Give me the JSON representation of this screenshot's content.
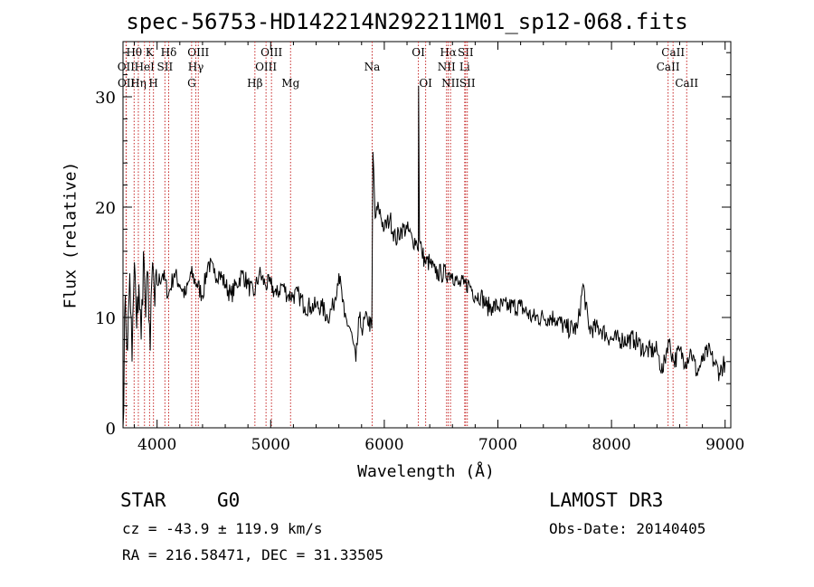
{
  "chart_data": {
    "type": "line",
    "title": "spec-56753-HD142214N292211M01_sp12-068.fits",
    "xlabel": "Wavelength (Å)",
    "ylabel": "Flux (relative)",
    "xlim": [
      3700,
      9050
    ],
    "ylim": [
      0,
      35
    ],
    "xticks": [
      4000,
      5000,
      6000,
      7000,
      8000,
      9000
    ],
    "yticks": [
      0,
      10,
      20,
      30
    ],
    "grid": false,
    "legend": "none",
    "series": [
      {
        "name": "flux",
        "x": [
          3700,
          3720,
          3740,
          3760,
          3780,
          3800,
          3820,
          3840,
          3860,
          3880,
          3900,
          3920,
          3940,
          3960,
          3980,
          4000,
          4050,
          4100,
          4150,
          4200,
          4250,
          4300,
          4350,
          4400,
          4450,
          4500,
          4550,
          4600,
          4650,
          4700,
          4750,
          4800,
          4850,
          4900,
          4950,
          5000,
          5050,
          5100,
          5150,
          5200,
          5250,
          5300,
          5350,
          5400,
          5450,
          5500,
          5550,
          5600,
          5650,
          5700,
          5750,
          5780,
          5800,
          5850,
          5890,
          5900,
          5920,
          5950,
          6000,
          6050,
          6100,
          6150,
          6200,
          6250,
          6280,
          6300,
          6302,
          6310,
          6330,
          6360,
          6400,
          6450,
          6500,
          6560,
          6600,
          6650,
          6700,
          6750,
          6800,
          6850,
          6900,
          6950,
          7000,
          7100,
          7200,
          7300,
          7400,
          7500,
          7600,
          7700,
          7750,
          7800,
          7900,
          8000,
          8100,
          8200,
          8300,
          8400,
          8450,
          8500,
          8550,
          8600,
          8650,
          8700,
          8750,
          8800,
          8850,
          8900,
          8950,
          9000
        ],
        "y": [
          0,
          12,
          7,
          14,
          6,
          15,
          9,
          13,
          8,
          16,
          10,
          14,
          7,
          15,
          11,
          13,
          14,
          12,
          14,
          13,
          12,
          14,
          13,
          12,
          15,
          14,
          14,
          13,
          12,
          13,
          14,
          13,
          12,
          14,
          13,
          13,
          12,
          13,
          12,
          12,
          12,
          11,
          11,
          11,
          11,
          10,
          11,
          14,
          10,
          9,
          6,
          10,
          9,
          10,
          9,
          25,
          19,
          20,
          18,
          19,
          17,
          18,
          18,
          17,
          17,
          16,
          31,
          17,
          16,
          15,
          15,
          14,
          14,
          14,
          14,
          13,
          13,
          13,
          12,
          12,
          11,
          11,
          11,
          11,
          11,
          10,
          10,
          10,
          9,
          9,
          13,
          9,
          9,
          8,
          8,
          8,
          7,
          7,
          5,
          8,
          6,
          7,
          6,
          7,
          5,
          6,
          7,
          6,
          5,
          6
        ]
      }
    ],
    "line_markers": [
      {
        "label": "Hθ",
        "x": 3798,
        "row": 1
      },
      {
        "label": "OII",
        "x": 3727,
        "row": 2
      },
      {
        "label": "OII",
        "x": 3729,
        "row": 3
      },
      {
        "label": "Hη",
        "x": 3835,
        "row": 3
      },
      {
        "label": "K",
        "x": 3934,
        "row": 1
      },
      {
        "label": "HeI",
        "x": 3889,
        "row": 2
      },
      {
        "label": "SII",
        "x": 4069,
        "row": 2
      },
      {
        "label": "H",
        "x": 3968,
        "row": 3
      },
      {
        "label": "Hδ",
        "x": 4102,
        "row": 1
      },
      {
        "label": "OIII",
        "x": 4363,
        "row": 1
      },
      {
        "label": "Hγ",
        "x": 4341,
        "row": 2
      },
      {
        "label": "G",
        "x": 4304,
        "row": 3
      },
      {
        "label": "Hβ",
        "x": 4861,
        "row": 3
      },
      {
        "label": "OIII",
        "x": 5007,
        "row": 1
      },
      {
        "label": "OIII",
        "x": 4959,
        "row": 2
      },
      {
        "label": "Mg",
        "x": 5175,
        "row": 3
      },
      {
        "label": "Na",
        "x": 5893,
        "row": 2
      },
      {
        "label": "OI",
        "x": 6300,
        "row": 1
      },
      {
        "label": "OI",
        "x": 6364,
        "row": 3
      },
      {
        "label": "Hα",
        "x": 6563,
        "row": 1
      },
      {
        "label": "NII",
        "x": 6548,
        "row": 2
      },
      {
        "label": "NII",
        "x": 6583,
        "row": 3
      },
      {
        "label": "SII",
        "x": 6716,
        "row": 1
      },
      {
        "label": "Li",
        "x": 6708,
        "row": 2
      },
      {
        "label": "SII",
        "x": 6731,
        "row": 3
      },
      {
        "label": "CaII",
        "x": 8542,
        "row": 1
      },
      {
        "label": "CaII",
        "x": 8498,
        "row": 2
      },
      {
        "label": "CaII",
        "x": 8662,
        "row": 3
      }
    ]
  },
  "info": {
    "class": "STAR",
    "subclass": "G0",
    "survey": "LAMOST DR3",
    "cz": "cz = -43.9 ± 119.9 km/s",
    "obs_date": "Obs-Date: 20140405",
    "coords": "RA = 216.58471, DEC =  31.33505"
  }
}
